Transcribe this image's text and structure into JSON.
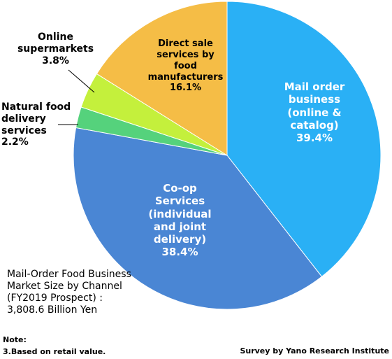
{
  "chart_data": {
    "type": "pie",
    "title": "",
    "slices": [
      {
        "label_lines": [
          "Mail order",
          "business",
          "(online &",
          "catalog)"
        ],
        "value": 39.4,
        "value_label": "39.4%",
        "color": "#2ab0f5"
      },
      {
        "label_lines": [
          "Co-op",
          "Services",
          "(individual",
          "and joint",
          "delivery)"
        ],
        "value": 38.4,
        "value_label": "38.4%",
        "color": "#4a86d4"
      },
      {
        "label_lines": [
          "Natural food",
          "delivery",
          "services"
        ],
        "value": 2.2,
        "value_label": "2.2%",
        "color": "#55d27c"
      },
      {
        "label_lines": [
          "Online",
          "supermarkets"
        ],
        "value": 3.8,
        "value_label": "3.8%",
        "color": "#c4f03c"
      },
      {
        "label_lines": [
          "Direct sale",
          "services by",
          "food",
          "manufacturers"
        ],
        "value": 16.1,
        "value_label": "16.1%",
        "color": "#f5bd46"
      }
    ]
  },
  "summary_lines": [
    "Mail-Order Food Business",
    "Market Size by Channel",
    "(FY2019 Prospect) :",
    "3,808.6 Billion Yen"
  ],
  "note": {
    "title": "Note:",
    "text": "3.Based on retail value."
  },
  "credit": "Survey by Yano Research Institute"
}
